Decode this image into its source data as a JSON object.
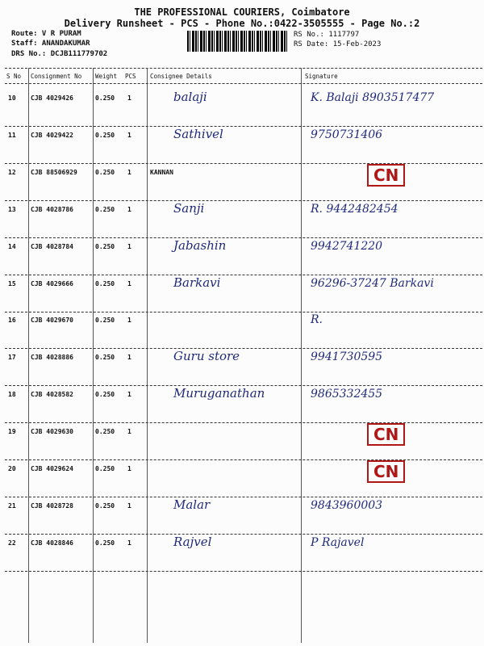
{
  "header": {
    "company": "THE PROFESSIONAL COURIERS, Coimbatore",
    "subtitle": "Delivery Runsheet - PCS - Phone No.:0422-3505555 - Page No.:2",
    "route": "Route: V R PURAM",
    "staff": "Staff: ANANDAKUMAR",
    "drs": "DRS No.: DCJB111779702",
    "rs_no": "RS No.: 1117797",
    "rs_date": "RS Date: 15-Feb-2023"
  },
  "columns": [
    "S No",
    "Consignment No",
    "Weight",
    "PCS",
    "Consignee Details",
    "Signature"
  ],
  "rows": [
    {
      "sno": "10",
      "cons": "CJB 4029426",
      "weight": "0.250",
      "pcs": "1",
      "consignee": "",
      "hand": "balaji",
      "sig": "K. Balaji 8903517477",
      "stamp": ""
    },
    {
      "sno": "11",
      "cons": "CJB 4029422",
      "weight": "0.250",
      "pcs": "1",
      "consignee": "",
      "hand": "Sathivel",
      "sig": "9750731406",
      "stamp": ""
    },
    {
      "sno": "12",
      "cons": "CJB 88506929",
      "weight": "0.250",
      "pcs": "1",
      "consignee": "KANNAN",
      "hand": "",
      "sig": "",
      "stamp": "CN"
    },
    {
      "sno": "13",
      "cons": "CJB 4028786",
      "weight": "0.250",
      "pcs": "1",
      "consignee": "",
      "hand": "Sanji",
      "sig": "R. 9442482454",
      "stamp": ""
    },
    {
      "sno": "14",
      "cons": "CJB 4028784",
      "weight": "0.250",
      "pcs": "1",
      "consignee": "",
      "hand": "Jabashin",
      "sig": "9942741220",
      "stamp": ""
    },
    {
      "sno": "15",
      "cons": "CJB 4029666",
      "weight": "0.250",
      "pcs": "1",
      "consignee": "",
      "hand": "Barkavi",
      "sig": "96296-37247 Barkavi",
      "stamp": ""
    },
    {
      "sno": "16",
      "cons": "CJB 4029670",
      "weight": "0.250",
      "pcs": "1",
      "consignee": "",
      "hand": "",
      "sig": "R.",
      "stamp": ""
    },
    {
      "sno": "17",
      "cons": "CJB 4028886",
      "weight": "0.250",
      "pcs": "1",
      "consignee": "",
      "hand": "Guru store",
      "sig": "9941730595",
      "stamp": ""
    },
    {
      "sno": "18",
      "cons": "CJB 4028582",
      "weight": "0.250",
      "pcs": "1",
      "consignee": "",
      "hand": "Muruganathan",
      "sig": "9865332455",
      "stamp": ""
    },
    {
      "sno": "19",
      "cons": "CJB 4029630",
      "weight": "0.250",
      "pcs": "1",
      "consignee": "",
      "hand": "",
      "sig": "",
      "stamp": "CN"
    },
    {
      "sno": "20",
      "cons": "CJB 4029624",
      "weight": "0.250",
      "pcs": "1",
      "consignee": "",
      "hand": "",
      "sig": "",
      "stamp": "CN"
    },
    {
      "sno": "21",
      "cons": "CJB 4028728",
      "weight": "0.250",
      "pcs": "1",
      "consignee": "",
      "hand": "Malar",
      "sig": "9843960003",
      "stamp": ""
    },
    {
      "sno": "22",
      "cons": "CJB 4028846",
      "weight": "0.250",
      "pcs": "1",
      "consignee": "",
      "hand": "Rajvel",
      "sig": "P Rajavel",
      "stamp": ""
    }
  ]
}
